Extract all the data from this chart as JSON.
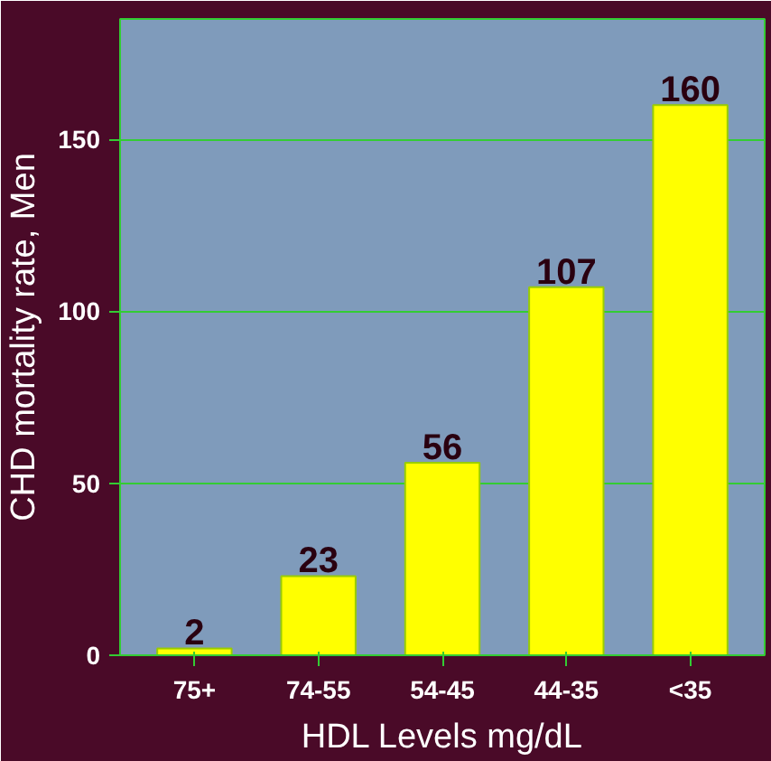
{
  "chart_data": {
    "type": "bar",
    "xlabel": "HDL Levels mg/dL",
    "ylabel": "CHD mortality rate, Men",
    "categories": [
      "75+",
      "74-55",
      "54-45",
      "44-35",
      "<35"
    ],
    "values": [
      2,
      23,
      56,
      107,
      160
    ],
    "color": "#ffff00",
    "ylim": [
      0,
      185
    ],
    "yticks": [
      0,
      50,
      100,
      150
    ],
    "grid": "y",
    "data_labels": true
  }
}
